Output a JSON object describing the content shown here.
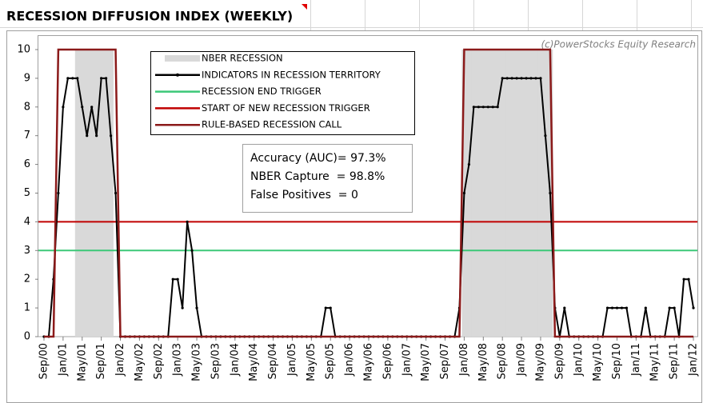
{
  "chart_data": {
    "type": "line",
    "title": "RECESSION DIFFUSION INDEX (WEEKLY)",
    "annotations": [
      "(c)PowerStocks Equity Research",
      "Accuracy (AUC)= 97.3%",
      "NBER Capture  = 98.8%",
      "False Positives  = 0"
    ],
    "categories": [
      "Sep/00",
      null,
      null,
      null,
      "Jan/01",
      null,
      null,
      null,
      "May/01",
      null,
      null,
      null,
      "Sep/01",
      null,
      null,
      null,
      "Jan/02",
      null,
      null,
      null,
      "May/02",
      null,
      null,
      null,
      "Sep/02",
      null,
      null,
      null,
      "Jan/03",
      null,
      null,
      null,
      "May/03",
      null,
      null,
      null,
      "Sep/03",
      null,
      null,
      null,
      "Jan/04",
      null,
      null,
      null,
      "May/04",
      null,
      null,
      null,
      "Sep/04",
      null,
      null,
      null,
      "Jan/05",
      null,
      null,
      null,
      "May/05",
      null,
      null,
      null,
      "Sep/05",
      null,
      null,
      null,
      "Jan/06",
      null,
      null,
      null,
      "May/06",
      null,
      null,
      null,
      "Sep/06",
      null,
      null,
      null,
      "Jan/07",
      null,
      null,
      null,
      "May/07",
      null,
      null,
      null,
      "Sep/07",
      null,
      null,
      null,
      "Jan/08",
      null,
      null,
      null,
      "May/08",
      null,
      null,
      null,
      "Sep/08",
      null,
      null,
      null,
      "Jan/09",
      null,
      null,
      null,
      "May/09",
      null,
      null,
      null,
      "Sep/09",
      null,
      null,
      null,
      "Jan/10",
      null,
      null,
      null,
      "May/10",
      null,
      null,
      null,
      "Sep/10",
      null,
      null,
      null,
      "Jan/11",
      null,
      null,
      null,
      "May/11",
      null,
      null,
      null,
      "Sep/11",
      null,
      null,
      null,
      "Jan/12"
    ],
    "series": [
      {
        "name": "NBER RECESSION",
        "style": "bar",
        "color": "#d9d9d9",
        "values": [
          null,
          null,
          null,
          null,
          null,
          null,
          null,
          10,
          10,
          10,
          10,
          10,
          10,
          10,
          10,
          null,
          null,
          null,
          null,
          null,
          null,
          null,
          null,
          null,
          null,
          null,
          null,
          null,
          null,
          null,
          null,
          null,
          null,
          null,
          null,
          null,
          null,
          null,
          null,
          null,
          null,
          null,
          null,
          null,
          null,
          null,
          null,
          null,
          null,
          null,
          null,
          null,
          null,
          null,
          null,
          null,
          null,
          null,
          null,
          null,
          null,
          null,
          null,
          null,
          null,
          null,
          null,
          null,
          null,
          null,
          null,
          null,
          null,
          null,
          null,
          null,
          null,
          null,
          null,
          null,
          null,
          null,
          null,
          null,
          null,
          null,
          null,
          null,
          10,
          10,
          10,
          10,
          10,
          10,
          10,
          10,
          10,
          10,
          10,
          10,
          10,
          10,
          10,
          10,
          10,
          10,
          10,
          null,
          null,
          null,
          null,
          null,
          null,
          null,
          null,
          null,
          null,
          null,
          null,
          null,
          null,
          null,
          null,
          null,
          null,
          null,
          null,
          null,
          null,
          null,
          null,
          null,
          null,
          null,
          null,
          null,
          null
        ]
      },
      {
        "name": "INDICATORS IN RECESSION TERRITORY",
        "style": "line",
        "markers": true,
        "color": "#000000",
        "values": [
          0,
          0,
          2,
          5,
          8,
          9,
          9,
          9,
          8,
          7,
          8,
          7,
          9,
          9,
          7,
          5,
          0,
          0,
          0,
          0,
          0,
          0,
          0,
          0,
          0,
          0,
          0,
          2,
          2,
          1,
          4,
          3,
          1,
          0,
          0,
          0,
          0,
          0,
          0,
          0,
          0,
          0,
          0,
          0,
          0,
          0,
          0,
          0,
          0,
          0,
          0,
          0,
          0,
          0,
          0,
          0,
          0,
          0,
          0,
          1,
          1,
          0,
          0,
          0,
          0,
          0,
          0,
          0,
          0,
          0,
          0,
          0,
          0,
          0,
          0,
          0,
          0,
          0,
          0,
          0,
          0,
          0,
          0,
          0,
          0,
          0,
          0,
          1,
          5,
          6,
          8,
          8,
          8,
          8,
          8,
          8,
          9,
          9,
          9,
          9,
          9,
          9,
          9,
          9,
          9,
          7,
          5,
          1,
          0,
          1,
          0,
          0,
          0,
          0,
          0,
          0,
          0,
          0,
          1,
          1,
          1,
          1,
          1,
          0,
          0,
          0,
          1,
          0,
          0,
          0,
          0,
          1,
          1,
          0,
          2,
          2,
          1
        ]
      },
      {
        "name": "RECESSION END TRIGGER",
        "style": "hline",
        "color": "#3cc878",
        "value": 3
      },
      {
        "name": "START OF NEW RECESSION TRIGGER",
        "style": "hline",
        "color": "#c00000",
        "value": 4
      },
      {
        "name": "RULE-BASED RECESSION CALL",
        "style": "line",
        "markers": false,
        "color": "#8b1a1a",
        "values": [
          0,
          0,
          0,
          10,
          10,
          10,
          10,
          10,
          10,
          10,
          10,
          10,
          10,
          10,
          10,
          10,
          0,
          0,
          0,
          0,
          0,
          0,
          0,
          0,
          0,
          0,
          0,
          0,
          0,
          0,
          0,
          0,
          0,
          0,
          0,
          0,
          0,
          0,
          0,
          0,
          0,
          0,
          0,
          0,
          0,
          0,
          0,
          0,
          0,
          0,
          0,
          0,
          0,
          0,
          0,
          0,
          0,
          0,
          0,
          0,
          0,
          0,
          0,
          0,
          0,
          0,
          0,
          0,
          0,
          0,
          0,
          0,
          0,
          0,
          0,
          0,
          0,
          0,
          0,
          0,
          0,
          0,
          0,
          0,
          0,
          0,
          0,
          0,
          10,
          10,
          10,
          10,
          10,
          10,
          10,
          10,
          10,
          10,
          10,
          10,
          10,
          10,
          10,
          10,
          10,
          10,
          10,
          0,
          0,
          0,
          0,
          0,
          0,
          0,
          0,
          0,
          0,
          0,
          0,
          0,
          0,
          0,
          0,
          0,
          0,
          0,
          0,
          0,
          0,
          0,
          0,
          0,
          0,
          0,
          0,
          0,
          0
        ]
      }
    ],
    "ylim": [
      0,
      10
    ],
    "yticks": [
      0,
      1,
      2,
      3,
      4,
      5,
      6,
      7,
      8,
      9,
      10
    ],
    "grid": false
  }
}
